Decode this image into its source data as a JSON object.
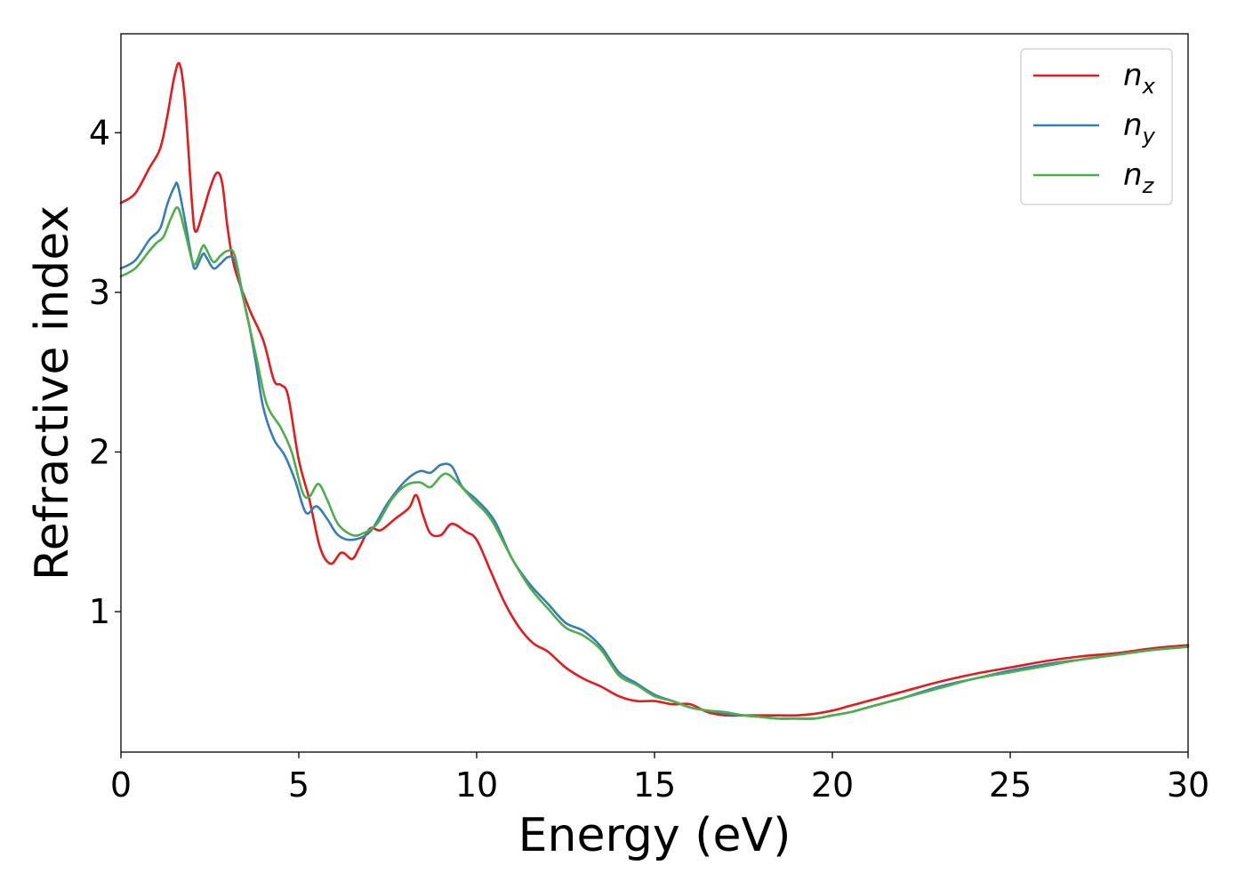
{
  "chart_data": {
    "type": "line",
    "xlabel": "Energy (eV)",
    "ylabel": "Refractive index",
    "xlim": [
      0,
      30
    ],
    "ylim": [
      0.12,
      4.62
    ],
    "xticks": [
      0,
      5,
      10,
      15,
      20,
      25,
      30
    ],
    "xtick_labels": [
      "0",
      "5",
      "10",
      "15",
      "20",
      "25",
      "30"
    ],
    "yticks": [
      1,
      2,
      3,
      4
    ],
    "ytick_labels": [
      "1",
      "2",
      "3",
      "4"
    ],
    "grid": false,
    "legend_position": "top-right",
    "series": [
      {
        "name": "n",
        "subscript": "x",
        "color": "#e41a1c",
        "points": [
          [
            0,
            3.56
          ],
          [
            0.4,
            3.62
          ],
          [
            0.8,
            3.78
          ],
          [
            1.1,
            3.9
          ],
          [
            1.3,
            4.1
          ],
          [
            1.5,
            4.35
          ],
          [
            1.65,
            4.43
          ],
          [
            1.8,
            4.2
          ],
          [
            2.0,
            3.55
          ],
          [
            2.1,
            3.38
          ],
          [
            2.3,
            3.5
          ],
          [
            2.5,
            3.65
          ],
          [
            2.7,
            3.75
          ],
          [
            2.85,
            3.68
          ],
          [
            3.0,
            3.4
          ],
          [
            3.2,
            3.15
          ],
          [
            3.6,
            2.9
          ],
          [
            4.0,
            2.7
          ],
          [
            4.3,
            2.45
          ],
          [
            4.5,
            2.42
          ],
          [
            4.7,
            2.35
          ],
          [
            5.0,
            1.95
          ],
          [
            5.3,
            1.7
          ],
          [
            5.6,
            1.4
          ],
          [
            5.9,
            1.3
          ],
          [
            6.2,
            1.37
          ],
          [
            6.5,
            1.33
          ],
          [
            6.7,
            1.4
          ],
          [
            7.0,
            1.52
          ],
          [
            7.3,
            1.51
          ],
          [
            7.7,
            1.58
          ],
          [
            8.1,
            1.65
          ],
          [
            8.3,
            1.73
          ],
          [
            8.5,
            1.6
          ],
          [
            8.7,
            1.49
          ],
          [
            9.0,
            1.48
          ],
          [
            9.3,
            1.55
          ],
          [
            9.7,
            1.5
          ],
          [
            10.0,
            1.45
          ],
          [
            10.4,
            1.25
          ],
          [
            10.8,
            1.05
          ],
          [
            11.2,
            0.9
          ],
          [
            11.6,
            0.8
          ],
          [
            12.0,
            0.75
          ],
          [
            12.5,
            0.65
          ],
          [
            13.0,
            0.58
          ],
          [
            13.5,
            0.53
          ],
          [
            14.0,
            0.47
          ],
          [
            14.5,
            0.44
          ],
          [
            15.0,
            0.44
          ],
          [
            15.5,
            0.42
          ],
          [
            16.0,
            0.42
          ],
          [
            16.5,
            0.37
          ],
          [
            17.0,
            0.35
          ],
          [
            17.5,
            0.35
          ],
          [
            18.0,
            0.35
          ],
          [
            18.5,
            0.35
          ],
          [
            19.0,
            0.35
          ],
          [
            19.5,
            0.36
          ],
          [
            20.0,
            0.38
          ],
          [
            20.5,
            0.41
          ],
          [
            21.0,
            0.44
          ],
          [
            21.5,
            0.47
          ],
          [
            22.0,
            0.5
          ],
          [
            23.0,
            0.56
          ],
          [
            24.0,
            0.61
          ],
          [
            25.0,
            0.65
          ],
          [
            26.0,
            0.69
          ],
          [
            27.0,
            0.72
          ],
          [
            28.0,
            0.74
          ],
          [
            29.0,
            0.77
          ],
          [
            30.0,
            0.79
          ]
        ]
      },
      {
        "name": "n",
        "subscript": "y",
        "color": "#377eb8",
        "points": [
          [
            0,
            3.15
          ],
          [
            0.4,
            3.2
          ],
          [
            0.8,
            3.33
          ],
          [
            1.1,
            3.4
          ],
          [
            1.3,
            3.55
          ],
          [
            1.5,
            3.66
          ],
          [
            1.6,
            3.67
          ],
          [
            1.8,
            3.45
          ],
          [
            2.0,
            3.2
          ],
          [
            2.1,
            3.15
          ],
          [
            2.3,
            3.24
          ],
          [
            2.4,
            3.22
          ],
          [
            2.6,
            3.15
          ],
          [
            2.8,
            3.18
          ],
          [
            3.0,
            3.22
          ],
          [
            3.2,
            3.2
          ],
          [
            3.4,
            3.0
          ],
          [
            3.6,
            2.8
          ],
          [
            3.8,
            2.55
          ],
          [
            4.0,
            2.28
          ],
          [
            4.3,
            2.08
          ],
          [
            4.6,
            1.98
          ],
          [
            4.9,
            1.82
          ],
          [
            5.2,
            1.62
          ],
          [
            5.5,
            1.66
          ],
          [
            5.8,
            1.58
          ],
          [
            6.1,
            1.48
          ],
          [
            6.5,
            1.45
          ],
          [
            7.0,
            1.5
          ],
          [
            7.5,
            1.68
          ],
          [
            8.0,
            1.82
          ],
          [
            8.4,
            1.88
          ],
          [
            8.7,
            1.87
          ],
          [
            9.0,
            1.92
          ],
          [
            9.3,
            1.91
          ],
          [
            9.6,
            1.78
          ],
          [
            10.0,
            1.7
          ],
          [
            10.5,
            1.57
          ],
          [
            11.0,
            1.33
          ],
          [
            11.5,
            1.17
          ],
          [
            12.0,
            1.05
          ],
          [
            12.5,
            0.93
          ],
          [
            13.0,
            0.88
          ],
          [
            13.5,
            0.78
          ],
          [
            14.0,
            0.62
          ],
          [
            14.5,
            0.55
          ],
          [
            15.0,
            0.48
          ],
          [
            15.5,
            0.44
          ],
          [
            16.0,
            0.4
          ],
          [
            16.5,
            0.38
          ],
          [
            17.0,
            0.36
          ],
          [
            17.5,
            0.35
          ],
          [
            18.0,
            0.34
          ],
          [
            18.5,
            0.33
          ],
          [
            19.0,
            0.33
          ],
          [
            19.5,
            0.33
          ],
          [
            20.0,
            0.35
          ],
          [
            20.5,
            0.37
          ],
          [
            21.0,
            0.4
          ],
          [
            21.5,
            0.43
          ],
          [
            22.0,
            0.46
          ],
          [
            23.0,
            0.53
          ],
          [
            24.0,
            0.58
          ],
          [
            25.0,
            0.63
          ],
          [
            26.0,
            0.67
          ],
          [
            27.0,
            0.7
          ],
          [
            28.0,
            0.73
          ],
          [
            29.0,
            0.76
          ],
          [
            30.0,
            0.78
          ]
        ]
      },
      {
        "name": "n",
        "subscript": "z",
        "color": "#4daf4a",
        "points": [
          [
            0,
            3.1
          ],
          [
            0.4,
            3.15
          ],
          [
            0.8,
            3.26
          ],
          [
            1.0,
            3.31
          ],
          [
            1.2,
            3.35
          ],
          [
            1.4,
            3.46
          ],
          [
            1.6,
            3.53
          ],
          [
            1.8,
            3.38
          ],
          [
            2.0,
            3.2
          ],
          [
            2.1,
            3.18
          ],
          [
            2.3,
            3.29
          ],
          [
            2.4,
            3.27
          ],
          [
            2.6,
            3.19
          ],
          [
            2.8,
            3.23
          ],
          [
            3.0,
            3.26
          ],
          [
            3.2,
            3.23
          ],
          [
            3.5,
            2.9
          ],
          [
            3.8,
            2.6
          ],
          [
            4.1,
            2.3
          ],
          [
            4.5,
            2.15
          ],
          [
            4.8,
            2.0
          ],
          [
            5.1,
            1.75
          ],
          [
            5.3,
            1.72
          ],
          [
            5.55,
            1.8
          ],
          [
            5.8,
            1.7
          ],
          [
            6.1,
            1.55
          ],
          [
            6.5,
            1.48
          ],
          [
            6.8,
            1.49
          ],
          [
            7.2,
            1.55
          ],
          [
            7.6,
            1.7
          ],
          [
            8.0,
            1.79
          ],
          [
            8.4,
            1.81
          ],
          [
            8.7,
            1.78
          ],
          [
            9.0,
            1.85
          ],
          [
            9.2,
            1.86
          ],
          [
            9.5,
            1.8
          ],
          [
            9.9,
            1.7
          ],
          [
            10.4,
            1.58
          ],
          [
            11.0,
            1.33
          ],
          [
            11.5,
            1.15
          ],
          [
            12.0,
            1.02
          ],
          [
            12.5,
            0.9
          ],
          [
            13.0,
            0.85
          ],
          [
            13.5,
            0.76
          ],
          [
            14.0,
            0.6
          ],
          [
            14.5,
            0.54
          ],
          [
            15.0,
            0.47
          ],
          [
            15.5,
            0.44
          ],
          [
            16.0,
            0.4
          ],
          [
            16.5,
            0.38
          ],
          [
            17.0,
            0.37
          ],
          [
            17.5,
            0.35
          ],
          [
            18.0,
            0.34
          ],
          [
            18.5,
            0.33
          ],
          [
            19.0,
            0.33
          ],
          [
            19.5,
            0.33
          ],
          [
            20.0,
            0.35
          ],
          [
            20.5,
            0.37
          ],
          [
            21.0,
            0.4
          ],
          [
            21.5,
            0.43
          ],
          [
            22.0,
            0.46
          ],
          [
            23.0,
            0.52
          ],
          [
            24.0,
            0.58
          ],
          [
            25.0,
            0.62
          ],
          [
            26.0,
            0.66
          ],
          [
            27.0,
            0.7
          ],
          [
            28.0,
            0.73
          ],
          [
            29.0,
            0.76
          ],
          [
            30.0,
            0.78
          ]
        ]
      }
    ]
  }
}
